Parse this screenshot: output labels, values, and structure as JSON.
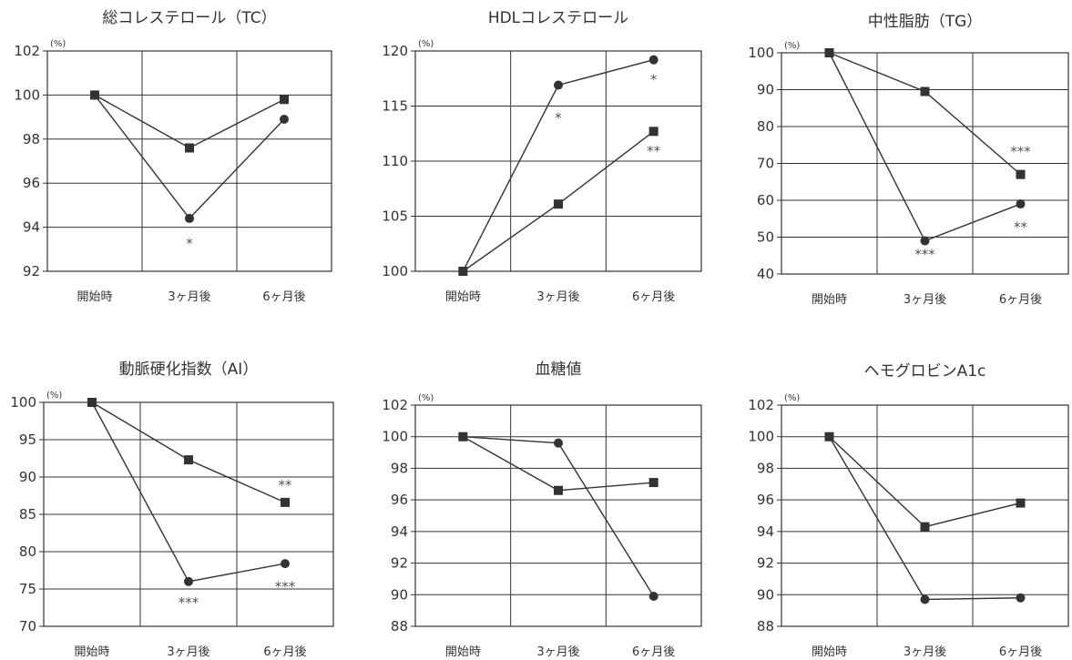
{
  "chart_data": [
    {
      "type": "line",
      "title": "総コレステロール（TC）",
      "unit": "(%)",
      "categories": [
        "開始時",
        "3ヶ月後",
        "6ヶ月後"
      ],
      "ylim": [
        92,
        102
      ],
      "yticks": [
        92,
        94,
        96,
        98,
        100,
        102
      ],
      "grid": true,
      "series": [
        {
          "marker": "square",
          "values": [
            100,
            97.6,
            99.8
          ]
        },
        {
          "marker": "circle",
          "values": [
            100,
            94.4,
            98.9
          ]
        }
      ],
      "annotations": [
        {
          "text": "*",
          "category": 1,
          "y": 93.3
        }
      ]
    },
    {
      "type": "line",
      "title": "HDLコレステロール",
      "unit": "(%)",
      "categories": [
        "開始時",
        "3ヶ月後",
        "6ヶ月後"
      ],
      "ylim": [
        100,
        120
      ],
      "yticks": [
        100,
        105,
        110,
        115,
        120
      ],
      "grid": true,
      "series": [
        {
          "marker": "square",
          "values": [
            100,
            106.1,
            112.7
          ]
        },
        {
          "marker": "circle",
          "values": [
            100,
            116.9,
            119.2
          ]
        }
      ],
      "annotations": [
        {
          "text": "*",
          "category": 1,
          "y": 114.0
        },
        {
          "text": "*",
          "category": 2,
          "y": 117.5
        },
        {
          "text": "**",
          "category": 2,
          "y": 111.0
        }
      ]
    },
    {
      "type": "line",
      "title": "中性脂肪（TG）",
      "unit": "(%)",
      "categories": [
        "開始時",
        "3ヶ月後",
        "6ヶ月後"
      ],
      "ylim": [
        40,
        100
      ],
      "yticks": [
        40,
        50,
        60,
        70,
        80,
        90,
        100
      ],
      "grid": true,
      "series": [
        {
          "marker": "square",
          "values": [
            100,
            89.5,
            67
          ]
        },
        {
          "marker": "circle",
          "values": [
            100,
            49,
            59
          ]
        }
      ],
      "annotations": [
        {
          "text": "***",
          "category": 2,
          "y": 73.5
        },
        {
          "text": "**",
          "category": 2,
          "y": 53.0
        },
        {
          "text": "***",
          "category": 1,
          "y": 45.5
        }
      ]
    },
    {
      "type": "line",
      "title": "動脈硬化指数（AI）",
      "unit": "(%)",
      "categories": [
        "開始時",
        "3ヶ月後",
        "6ヶ月後"
      ],
      "ylim": [
        70,
        100
      ],
      "yticks": [
        70,
        75,
        80,
        85,
        90,
        95,
        100
      ],
      "grid": true,
      "series": [
        {
          "marker": "square",
          "values": [
            100,
            92.3,
            86.6
          ]
        },
        {
          "marker": "circle",
          "values": [
            100,
            76,
            78.4
          ]
        }
      ],
      "annotations": [
        {
          "text": "**",
          "category": 2,
          "y": 89.0
        },
        {
          "text": "***",
          "category": 1,
          "y": 73.3
        },
        {
          "text": "***",
          "category": 2,
          "y": 75.4
        }
      ]
    },
    {
      "type": "line",
      "title": "血糖値",
      "unit": "(%)",
      "categories": [
        "開始時",
        "3ヶ月後",
        "6ヶ月後"
      ],
      "ylim": [
        88,
        102
      ],
      "yticks": [
        88,
        90,
        92,
        94,
        96,
        98,
        100,
        102
      ],
      "grid": true,
      "series": [
        {
          "marker": "square",
          "values": [
            100,
            96.6,
            97.1
          ]
        },
        {
          "marker": "circle",
          "values": [
            100,
            99.6,
            89.9
          ]
        }
      ],
      "annotations": []
    },
    {
      "type": "line",
      "title": "ヘモグロビンA1c",
      "unit": "(%)",
      "categories": [
        "開始時",
        "3ヶ月後",
        "6ヶ月後"
      ],
      "ylim": [
        88,
        102
      ],
      "yticks": [
        88,
        90,
        92,
        94,
        96,
        98,
        100,
        102
      ],
      "grid": true,
      "series": [
        {
          "marker": "square",
          "values": [
            100,
            94.3,
            95.8
          ]
        },
        {
          "marker": "circle",
          "values": [
            100,
            89.7,
            89.8
          ]
        }
      ],
      "annotations": []
    }
  ]
}
